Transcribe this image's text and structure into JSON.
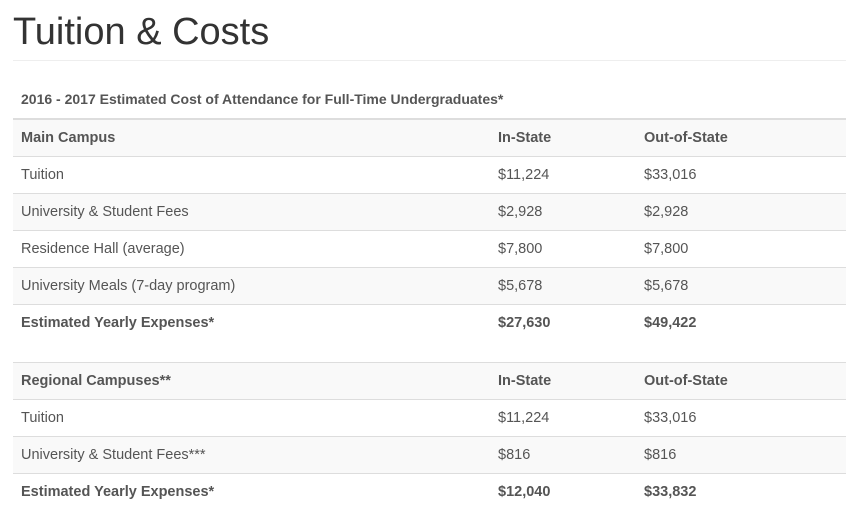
{
  "page": {
    "title": "Tuition & Costs",
    "caption": "2016 - 2017 Estimated Cost of Attendance for Full-Time Undergraduates*"
  },
  "main_campus": {
    "headers": [
      "Main Campus",
      "In-State",
      "Out-of-State"
    ],
    "rows": [
      {
        "label": "Tuition",
        "in_state": "$11,224",
        "out_of_state": "$33,016"
      },
      {
        "label": "University & Student Fees",
        "in_state": "$2,928",
        "out_of_state": "$2,928"
      },
      {
        "label": "Residence Hall (average)",
        "in_state": "$7,800",
        "out_of_state": "$7,800"
      },
      {
        "label": "University Meals (7-day program)",
        "in_state": "$5,678",
        "out_of_state": "$5,678"
      }
    ],
    "total": {
      "label": "Estimated Yearly Expenses*",
      "in_state": "$27,630",
      "out_of_state": "$49,422"
    }
  },
  "regional_campuses": {
    "headers": [
      "Regional Campuses**",
      "In-State",
      "Out-of-State"
    ],
    "rows": [
      {
        "label": "Tuition",
        "in_state": "$11,224",
        "out_of_state": "$33,016"
      },
      {
        "label": "University & Student Fees***",
        "in_state": "$816",
        "out_of_state": "$816"
      }
    ],
    "total": {
      "label": "Estimated Yearly Expenses*",
      "in_state": "$12,040",
      "out_of_state": "$33,832"
    }
  },
  "colors": {
    "text": "#555555",
    "title": "#333333",
    "stripe": "#f9f9f9",
    "border": "#dddddd"
  }
}
